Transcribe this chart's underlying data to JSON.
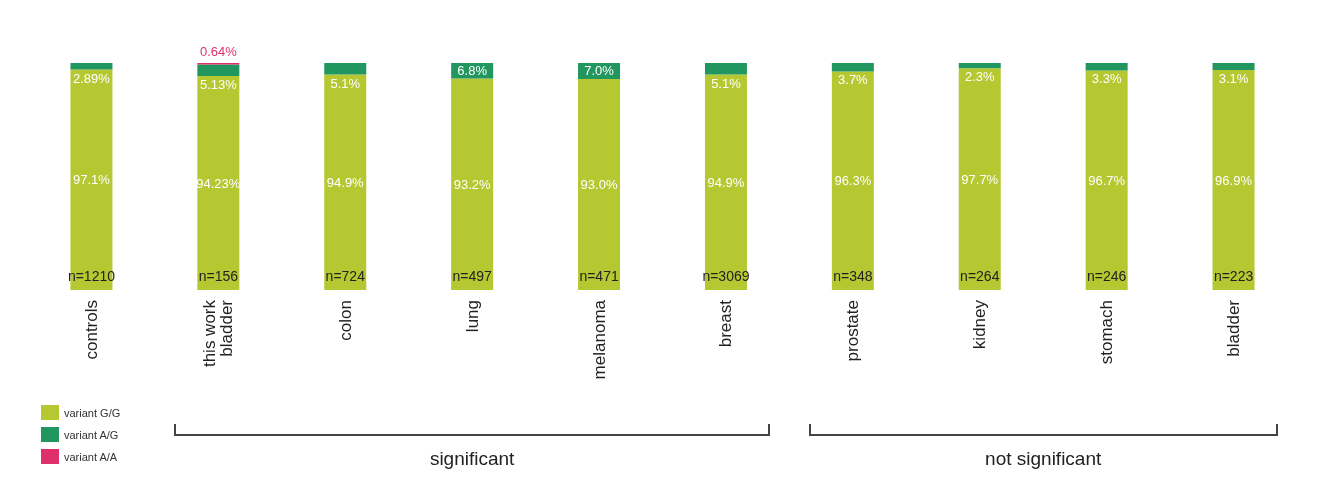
{
  "chart_data": {
    "type": "bar",
    "stacked": true,
    "legend": "bottom left",
    "grid": false,
    "categories": [
      "controls",
      "this work\nbladder",
      "colon",
      "lung",
      "melanoma",
      "breast",
      "prostate",
      "kidney",
      "stomach",
      "bladder"
    ],
    "ylim": [
      0,
      100
    ],
    "tick_labels": "x",
    "series": [
      {
        "name": "variant G/G",
        "color": "#b5c832",
        "values": [
          97.1,
          94.23,
          94.9,
          93.2,
          93.0,
          94.9,
          96.3,
          97.7,
          96.7,
          96.9
        ],
        "value_labels": [
          "97.1%",
          "94.23%",
          "94.9%",
          "93.2%",
          "93.0%",
          "94.9%",
          "96.3%",
          "97.7%",
          "96.7%",
          "96.9%"
        ]
      },
      {
        "name": "variant A/G",
        "color": "#21965e",
        "values": [
          2.89,
          5.13,
          5.1,
          6.8,
          7.0,
          5.1,
          3.7,
          2.3,
          3.3,
          3.1
        ],
        "value_labels": [
          "2.89%",
          "5.13%",
          "5.1%",
          "6.8%",
          "7.0%",
          "5.1%",
          "3.7%",
          "2.3%",
          "3.3%",
          "3.1%"
        ]
      },
      {
        "name": "variant A/A",
        "color": "#e0306a",
        "values": [
          null,
          0.64,
          null,
          null,
          null,
          null,
          null,
          null,
          null,
          null
        ],
        "value_labels": [
          null,
          "0.64%",
          null,
          null,
          null,
          null,
          null,
          null,
          null,
          null
        ]
      }
    ],
    "annotations": [
      "n=1210",
      "n=156",
      "n=724",
      "n=497",
      "n=471",
      "n=3069",
      "n=348",
      "n=264",
      "n=246",
      "n=223",
      "significant",
      "not significant"
    ]
  }
}
